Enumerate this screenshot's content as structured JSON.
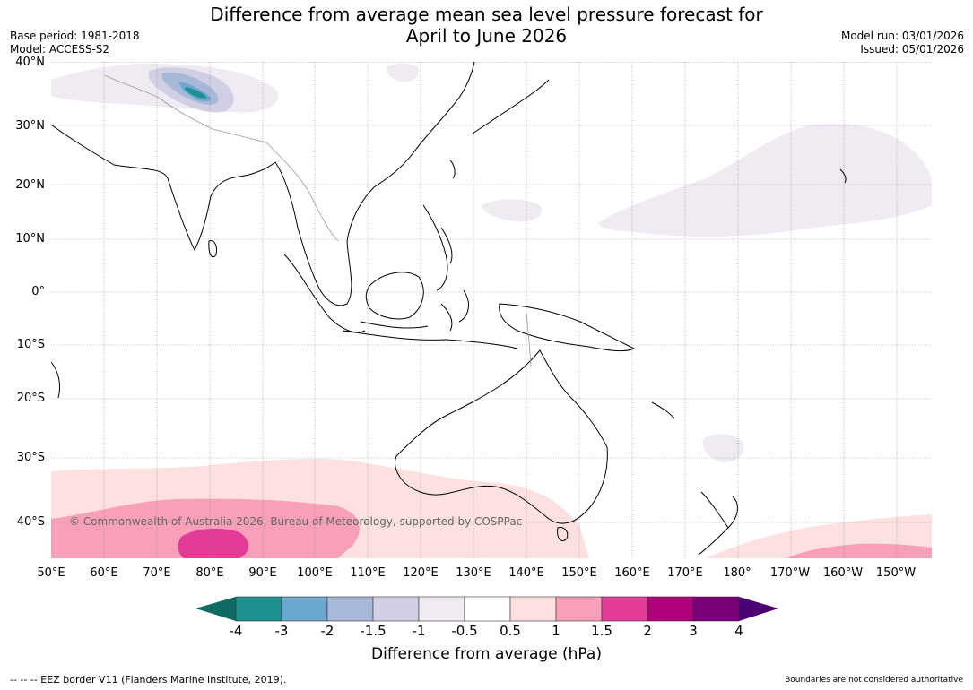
{
  "header": {
    "title_line1": "Difference from average mean sea level pressure forecast for",
    "title_line2": "April to June 2026",
    "base_period": "Base period: 1981-2018",
    "model": "Model: ACCESS-S2",
    "model_run": "Model run: 03/01/2026",
    "issued": "Issued: 05/01/2026"
  },
  "map": {
    "copyright": "© Commonwealth of Australia 2026, Bureau of Meteorology, supported by COSPPac",
    "lat_labels": [
      "40°N",
      "30°N",
      "20°N",
      "10°N",
      "0°",
      "10°S",
      "20°S",
      "30°S",
      "40°S"
    ],
    "lon_labels": [
      "50°E",
      "60°E",
      "70°E",
      "80°E",
      "90°E",
      "100°E",
      "110°E",
      "120°E",
      "130°E",
      "140°E",
      "150°E",
      "160°E",
      "170°E",
      "180°",
      "170°W",
      "160°W",
      "150°W"
    ]
  },
  "colorbar": {
    "title": "Difference from average (hPa)",
    "tick_labels": [
      "-4",
      "-3",
      "-2",
      "-1.5",
      "-1",
      "-0.5",
      "0.5",
      "1",
      "1.5",
      "2",
      "3",
      "4"
    ],
    "colors": {
      "below_min": "#0f6b5f",
      "bins": [
        "#1e9090",
        "#6aa8cf",
        "#a8b8d8",
        "#d0cfe4",
        "#f0ebf3",
        "#ffffff",
        "#fde0e0",
        "#f8a0b8",
        "#e23c98",
        "#b0007a",
        "#7a007a"
      ],
      "above_max": "#4a0070"
    }
  },
  "footer": {
    "eez_note": "--  --  -- EEZ border V11 (Flanders Marine Institute, 2019).",
    "disclaimer": "Boundaries are not considered authoritative"
  }
}
